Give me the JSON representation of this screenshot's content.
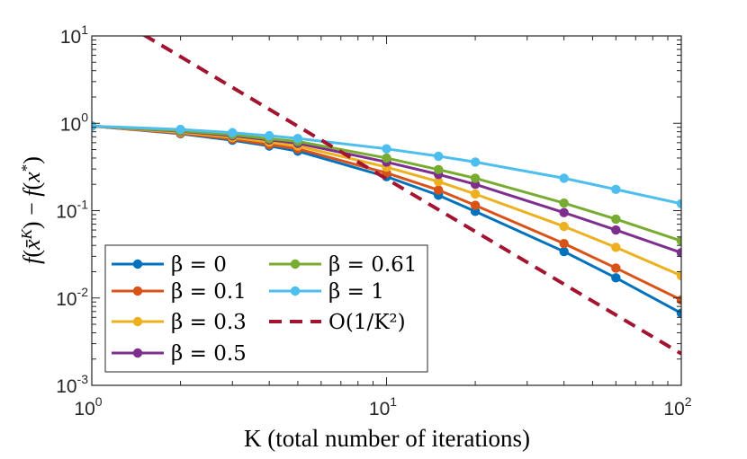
{
  "chart_data": {
    "type": "line",
    "title": "",
    "xlabel": "K (total number of iterations)",
    "ylabel": "f(x̄^K) − f(x*)",
    "xscale": "log",
    "yscale": "log",
    "xlim": [
      1,
      100
    ],
    "ylim": [
      0.001,
      10
    ],
    "x_ticks": [
      {
        "base": "10",
        "exp": "0",
        "value": 1
      },
      {
        "base": "10",
        "exp": "1",
        "value": 10
      },
      {
        "base": "10",
        "exp": "2",
        "value": 100
      }
    ],
    "y_ticks": [
      {
        "base": "10",
        "exp": "-3",
        "value": 0.001
      },
      {
        "base": "10",
        "exp": "-2",
        "value": 0.01
      },
      {
        "base": "10",
        "exp": "-1",
        "value": 0.1
      },
      {
        "base": "10",
        "exp": "0",
        "value": 1
      },
      {
        "base": "10",
        "exp": "1",
        "value": 10
      }
    ],
    "grid": false,
    "legend_position": "bottom-left",
    "x": [
      1,
      2,
      3,
      4,
      5,
      10,
      15,
      20,
      40,
      60,
      100
    ],
    "series": [
      {
        "name": "β = 0",
        "color": "#0072BD",
        "linestyle": "solid",
        "markers": true,
        "values": [
          0.93,
          0.76,
          0.64,
          0.55,
          0.48,
          0.245,
          0.15,
          0.098,
          0.034,
          0.017,
          0.0067
        ]
      },
      {
        "name": "β = 0.1",
        "color": "#D95319",
        "linestyle": "solid",
        "markers": true,
        "values": [
          0.93,
          0.77,
          0.66,
          0.57,
          0.51,
          0.27,
          0.172,
          0.115,
          0.042,
          0.022,
          0.0095
        ]
      },
      {
        "name": "β = 0.3",
        "color": "#EDB120",
        "linestyle": "solid",
        "markers": true,
        "values": [
          0.93,
          0.79,
          0.69,
          0.61,
          0.55,
          0.315,
          0.215,
          0.155,
          0.066,
          0.038,
          0.018
        ]
      },
      {
        "name": "β = 0.5",
        "color": "#7E2F8E",
        "linestyle": "solid",
        "markers": true,
        "values": [
          0.93,
          0.81,
          0.72,
          0.645,
          0.59,
          0.36,
          0.26,
          0.2,
          0.095,
          0.06,
          0.033
        ]
      },
      {
        "name": "β = 0.61",
        "color": "#77AC30",
        "linestyle": "solid",
        "markers": true,
        "values": [
          0.93,
          0.82,
          0.74,
          0.665,
          0.62,
          0.4,
          0.295,
          0.235,
          0.122,
          0.08,
          0.045
        ]
      },
      {
        "name": "β = 1",
        "color": "#4DBEEE",
        "linestyle": "solid",
        "markers": true,
        "values": [
          0.93,
          0.85,
          0.78,
          0.72,
          0.67,
          0.51,
          0.42,
          0.36,
          0.235,
          0.175,
          0.12
        ]
      },
      {
        "name": "O(1/K²)",
        "color": "#A2142F",
        "linestyle": "dashed",
        "markers": false,
        "x": [
          1.5,
          100
        ],
        "values": [
          10.3,
          0.0023
        ]
      }
    ],
    "legend": [
      {
        "label": "β = 0",
        "series": 0
      },
      {
        "label": "β = 0.1",
        "series": 1
      },
      {
        "label": "β = 0.3",
        "series": 2
      },
      {
        "label": "β = 0.5",
        "series": 3
      },
      {
        "label": "β = 0.61",
        "series": 4
      },
      {
        "label": "β = 1",
        "series": 5
      },
      {
        "label": "O(1/K²)",
        "series": 6
      }
    ]
  }
}
